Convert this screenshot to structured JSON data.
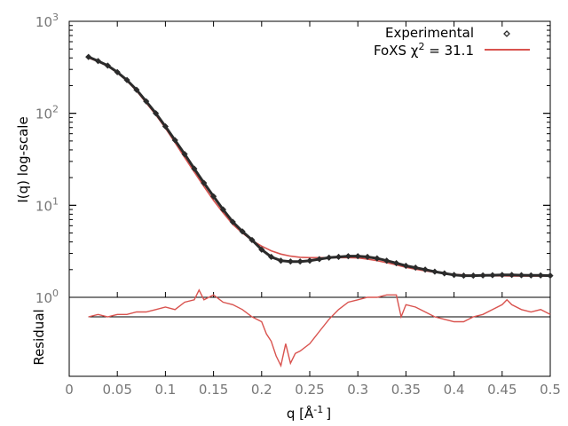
{
  "chart_data": [
    {
      "type": "scatter",
      "title": "",
      "xlabel": "q [Å⁻¹]",
      "xlabel_parts": {
        "main": "q [Å",
        "sup": "-1",
        "tail": "]"
      },
      "ylabel": "I(q) log-scale",
      "y_scale": "log",
      "xlim": [
        0,
        0.5
      ],
      "ylim": [
        1,
        1000
      ],
      "x_ticks": [
        0,
        0.05,
        0.1,
        0.15,
        0.2,
        0.25,
        0.3,
        0.35,
        0.4,
        0.45,
        0.5
      ],
      "x_tick_labels": [
        "0",
        "0.05",
        "0.1",
        "0.15",
        "0.2",
        "0.25",
        "0.3",
        "0.35",
        "0.4",
        "0.45",
        "0.5"
      ],
      "y_ticks": [
        1,
        10,
        100,
        1000
      ],
      "y_tick_labels": [
        {
          "base": "10",
          "exp": "0"
        },
        {
          "base": "10",
          "exp": "1"
        },
        {
          "base": "10",
          "exp": "2"
        },
        {
          "base": "10",
          "exp": "3"
        }
      ],
      "grid": false,
      "legend_position": "top-right",
      "series": [
        {
          "name": "Experimental",
          "marker": "diamond",
          "color": "#2b2b2b",
          "x": [
            0.02,
            0.03,
            0.04,
            0.05,
            0.06,
            0.07,
            0.08,
            0.09,
            0.1,
            0.11,
            0.12,
            0.13,
            0.14,
            0.15,
            0.16,
            0.17,
            0.18,
            0.19,
            0.2,
            0.21,
            0.22,
            0.23,
            0.24,
            0.25,
            0.26,
            0.27,
            0.28,
            0.29,
            0.3,
            0.31,
            0.32,
            0.33,
            0.34,
            0.35,
            0.36,
            0.37,
            0.38,
            0.39,
            0.4,
            0.41,
            0.42,
            0.43,
            0.44,
            0.45,
            0.46,
            0.47,
            0.48,
            0.49,
            0.5
          ],
          "y": [
            410,
            370,
            330,
            280,
            230,
            180,
            135,
            100,
            72,
            51,
            36,
            25,
            17.5,
            12.5,
            9.0,
            6.6,
            5.2,
            4.2,
            3.3,
            2.75,
            2.5,
            2.45,
            2.45,
            2.5,
            2.6,
            2.7,
            2.75,
            2.8,
            2.8,
            2.75,
            2.65,
            2.5,
            2.35,
            2.2,
            2.1,
            2.0,
            1.9,
            1.82,
            1.75,
            1.72,
            1.72,
            1.73,
            1.74,
            1.75,
            1.75,
            1.74,
            1.73,
            1.73,
            1.72
          ]
        },
        {
          "name": "FoXS χ² = 31.1",
          "name_parts": {
            "main": "FoXS χ",
            "sup": "2",
            "tail": " = 31.1"
          },
          "marker": "line",
          "color": "#d9534f",
          "x": [
            0.02,
            0.03,
            0.04,
            0.05,
            0.06,
            0.07,
            0.08,
            0.09,
            0.1,
            0.11,
            0.12,
            0.13,
            0.14,
            0.15,
            0.16,
            0.17,
            0.18,
            0.19,
            0.2,
            0.21,
            0.22,
            0.23,
            0.24,
            0.25,
            0.26,
            0.27,
            0.28,
            0.29,
            0.3,
            0.31,
            0.32,
            0.33,
            0.34,
            0.35,
            0.36,
            0.37,
            0.38,
            0.39,
            0.4,
            0.41,
            0.42,
            0.43,
            0.44,
            0.45,
            0.46,
            0.47,
            0.48,
            0.49,
            0.5
          ],
          "y": [
            400,
            365,
            325,
            275,
            225,
            175,
            130,
            96,
            69,
            48,
            33,
            23,
            16.0,
            11.3,
            8.3,
            6.2,
            5.0,
            4.15,
            3.6,
            3.2,
            2.95,
            2.8,
            2.72,
            2.7,
            2.7,
            2.7,
            2.7,
            2.7,
            2.68,
            2.6,
            2.5,
            2.38,
            2.25,
            2.12,
            2.02,
            1.94,
            1.87,
            1.82,
            1.78,
            1.75,
            1.73,
            1.72,
            1.71,
            1.71,
            1.7,
            1.7,
            1.7,
            1.7,
            1.7
          ]
        }
      ]
    },
    {
      "type": "line",
      "title": "",
      "xlabel": "",
      "ylabel": "Residual",
      "xlim": [
        0,
        0.5
      ],
      "ylim": [
        -1,
        1
      ],
      "x_ticks": [
        0,
        0.05,
        0.1,
        0.15,
        0.2,
        0.25,
        0.3,
        0.35,
        0.4,
        0.45,
        0.5
      ],
      "grid": false,
      "baseline": 0,
      "series": [
        {
          "color": "#d9534f",
          "x": [
            0.02,
            0.03,
            0.04,
            0.05,
            0.06,
            0.07,
            0.08,
            0.09,
            0.1,
            0.11,
            0.12,
            0.13,
            0.135,
            0.14,
            0.15,
            0.16,
            0.17,
            0.18,
            0.19,
            0.2,
            0.205,
            0.21,
            0.215,
            0.22,
            0.225,
            0.23,
            0.235,
            0.24,
            0.25,
            0.26,
            0.27,
            0.28,
            0.29,
            0.3,
            0.31,
            0.32,
            0.33,
            0.34,
            0.345,
            0.35,
            0.36,
            0.37,
            0.38,
            0.39,
            0.4,
            0.41,
            0.42,
            0.43,
            0.44,
            0.45,
            0.455,
            0.46,
            0.47,
            0.48,
            0.49,
            0.5
          ],
          "y": [
            0.0,
            0.05,
            0.0,
            0.05,
            0.05,
            0.1,
            0.1,
            0.15,
            0.2,
            0.15,
            0.3,
            0.35,
            0.55,
            0.35,
            0.45,
            0.3,
            0.25,
            0.15,
            0.0,
            -0.1,
            -0.35,
            -0.5,
            -0.8,
            -1.0,
            -0.55,
            -0.95,
            -0.75,
            -0.7,
            -0.55,
            -0.3,
            -0.05,
            0.15,
            0.3,
            0.35,
            0.4,
            0.4,
            0.45,
            0.45,
            0.0,
            0.25,
            0.2,
            0.1,
            0.0,
            -0.05,
            -0.1,
            -0.1,
            0.0,
            0.05,
            0.15,
            0.25,
            0.35,
            0.25,
            0.15,
            0.1,
            0.15,
            0.05
          ]
        }
      ]
    }
  ]
}
